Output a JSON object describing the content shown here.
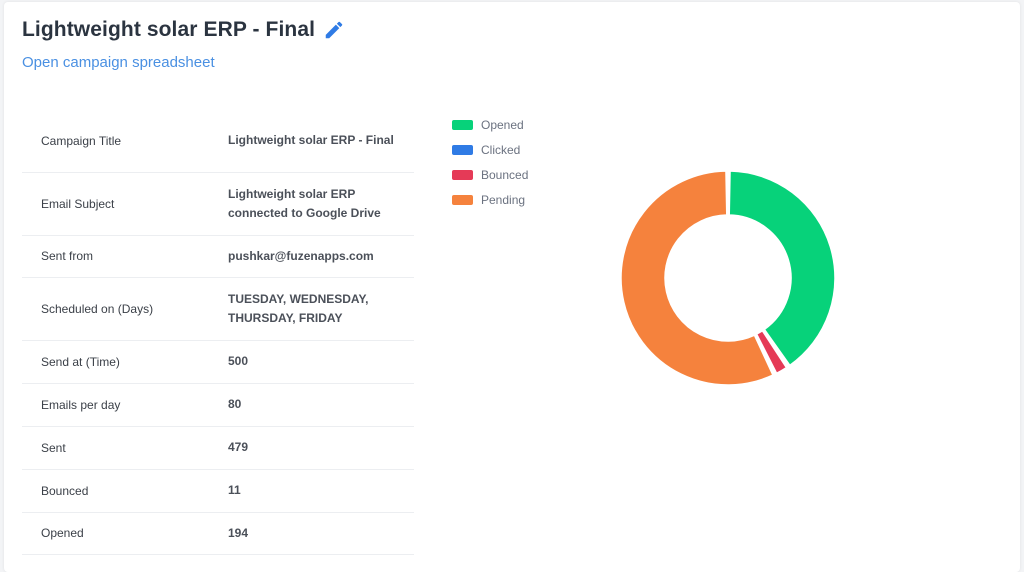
{
  "header": {
    "title": "Lightweight solar ERP - Final",
    "spreadsheet_link": "Open campaign spreadsheet"
  },
  "details": [
    {
      "label": "Campaign Title",
      "value": "Lightweight solar ERP - Final"
    },
    {
      "label": "Email Subject",
      "value": "Lightweight solar ERP connected to Google Drive"
    },
    {
      "label": "Sent from",
      "value": "pushkar@fuzenapps.com"
    },
    {
      "label": "Scheduled on (Days)",
      "value": "TUESDAY, WEDNESDAY, THURSDAY, FRIDAY"
    },
    {
      "label": "Send at (Time)",
      "value": "500"
    },
    {
      "label": "Emails per day",
      "value": "80"
    },
    {
      "label": "Sent",
      "value": "479"
    },
    {
      "label": "Bounced",
      "value": "11"
    },
    {
      "label": "Opened",
      "value": "194"
    }
  ],
  "colors": {
    "opened": "#07d27a",
    "clicked": "#2f7be5",
    "bounced": "#e53a57",
    "pending": "#f5823d",
    "link": "#4a90e2",
    "edit_icon": "#2f7be5"
  },
  "icons": {
    "edit": "pencil-icon"
  },
  "chart_data": {
    "type": "pie",
    "donut": true,
    "labels": [
      "Opened",
      "Clicked",
      "Bounced",
      "Pending"
    ],
    "values": [
      194,
      0,
      11,
      274
    ],
    "colors": [
      "#07d27a",
      "#2f7be5",
      "#e53a57",
      "#f5823d"
    ],
    "legend": "top-left"
  }
}
